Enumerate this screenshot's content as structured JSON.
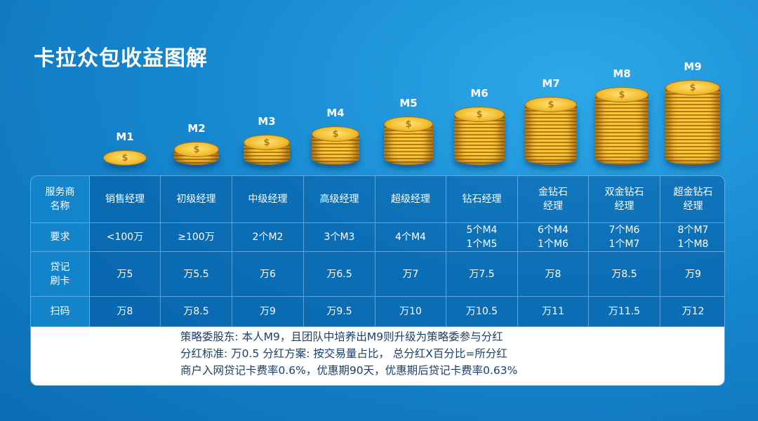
{
  "title": "卡拉众包收益图解",
  "levels": [
    "M1",
    "M2",
    "M3",
    "M4",
    "M5",
    "M6",
    "M7",
    "M8",
    "M9"
  ],
  "coin_icon": "dollar-coin-stack",
  "table": {
    "rows": [
      {
        "header": "服务商\n名称",
        "cells": [
          "销售经理",
          "初级经理",
          "中级经理",
          "高级经理",
          "超级经理",
          "钻石经理",
          "金钻石\n经理",
          "双金钻石\n经理",
          "超金钻石\n经理"
        ]
      },
      {
        "header": "要求",
        "cells": [
          "<100万",
          "≥100万",
          "2个M2",
          "3个M3",
          "4个M4",
          "5个M4\n1个M5",
          "6个M4\n1个M6",
          "7个M6\n1个M7",
          "8个M7\n1个M8"
        ]
      },
      {
        "header": "贷记\n刷卡",
        "cells": [
          "万5",
          "万5.5",
          "万6",
          "万6.5",
          "万7",
          "万7.5",
          "万8",
          "万8.5",
          "万9"
        ]
      },
      {
        "header": "扫码",
        "cells": [
          "万8",
          "万8.5",
          "万9",
          "万9.5",
          "万10",
          "万10.5",
          "万11",
          "万11.5",
          "万12"
        ]
      }
    ]
  },
  "notes": [
    "策略委股东: 本人M9，且团队中培养出M9则升级为策略委参与分红",
    "分红标准: 万0.5 分红方案: 按交易量占比， 总分红X百分比=所分红",
    "商户入网贷记卡费率0.6%，优惠期90天，优惠期后贷记卡费率0.63%"
  ]
}
